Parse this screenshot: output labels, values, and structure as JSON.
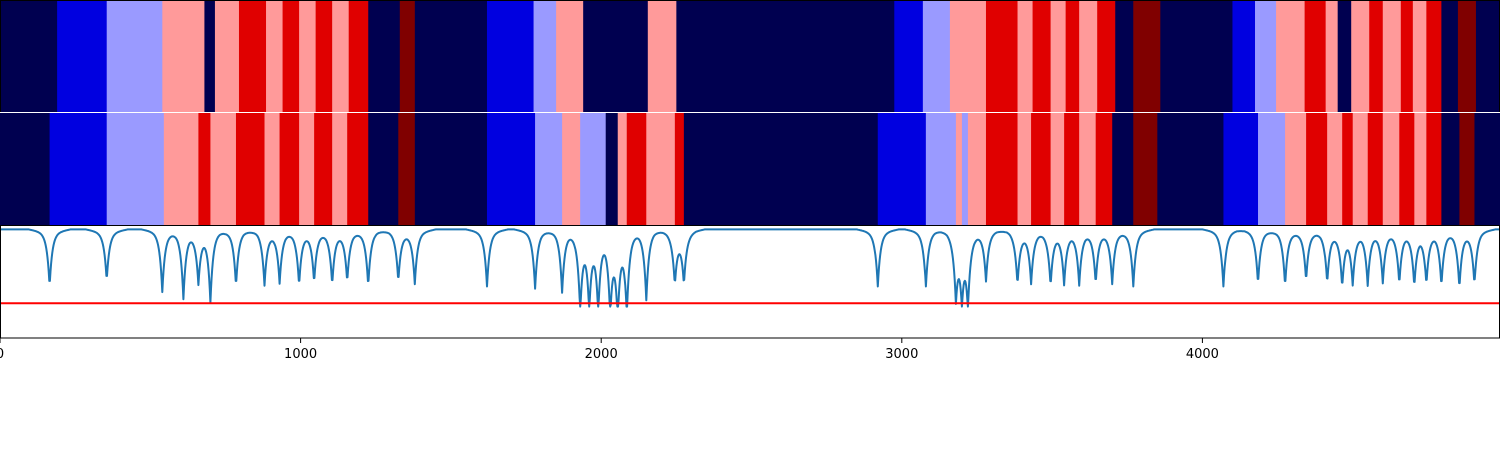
{
  "chart_data": {
    "type": "heatmap",
    "xlim": [
      0,
      4990
    ],
    "x_ticks": [
      {
        "value": 0,
        "label": "0"
      },
      {
        "value": 1000,
        "label": "1000"
      },
      {
        "value": 2000,
        "label": "2000"
      },
      {
        "value": 3000,
        "label": "3000"
      },
      {
        "value": 4000,
        "label": "4000"
      }
    ],
    "palette": {
      "N": "#000050",
      "B": "#0000e0",
      "L": "#9a9aff",
      "P": "#ff9a9a",
      "R": "#e00000",
      "D": "#800000"
    },
    "rows": [
      {
        "segments": [
          [
            0,
            190,
            "N"
          ],
          [
            190,
            355,
            "B"
          ],
          [
            355,
            540,
            "L"
          ],
          [
            540,
            680,
            "P"
          ],
          [
            680,
            715,
            "N"
          ],
          [
            715,
            795,
            "P"
          ],
          [
            795,
            885,
            "R"
          ],
          [
            885,
            940,
            "P"
          ],
          [
            940,
            995,
            "R"
          ],
          [
            995,
            1050,
            "P"
          ],
          [
            1050,
            1105,
            "R"
          ],
          [
            1105,
            1160,
            "P"
          ],
          [
            1160,
            1225,
            "R"
          ],
          [
            1225,
            1330,
            "N"
          ],
          [
            1330,
            1380,
            "D"
          ],
          [
            1380,
            1620,
            "N"
          ],
          [
            1620,
            1775,
            "B"
          ],
          [
            1775,
            1850,
            "L"
          ],
          [
            1850,
            1940,
            "P"
          ],
          [
            1940,
            2155,
            "N"
          ],
          [
            2155,
            2250,
            "P"
          ],
          [
            2250,
            2975,
            "N"
          ],
          [
            2975,
            3070,
            "B"
          ],
          [
            3070,
            3160,
            "L"
          ],
          [
            3160,
            3280,
            "P"
          ],
          [
            3280,
            3385,
            "R"
          ],
          [
            3385,
            3435,
            "P"
          ],
          [
            3435,
            3495,
            "R"
          ],
          [
            3495,
            3545,
            "P"
          ],
          [
            3545,
            3590,
            "R"
          ],
          [
            3590,
            3650,
            "P"
          ],
          [
            3650,
            3710,
            "R"
          ],
          [
            3710,
            3770,
            "N"
          ],
          [
            3770,
            3860,
            "D"
          ],
          [
            3860,
            4100,
            "N"
          ],
          [
            4100,
            4175,
            "B"
          ],
          [
            4175,
            4245,
            "L"
          ],
          [
            4245,
            4340,
            "P"
          ],
          [
            4340,
            4410,
            "R"
          ],
          [
            4410,
            4450,
            "P"
          ],
          [
            4450,
            4495,
            "N"
          ],
          [
            4495,
            4555,
            "P"
          ],
          [
            4555,
            4600,
            "R"
          ],
          [
            4600,
            4660,
            "P"
          ],
          [
            4660,
            4700,
            "R"
          ],
          [
            4700,
            4745,
            "P"
          ],
          [
            4745,
            4795,
            "R"
          ],
          [
            4795,
            4850,
            "N"
          ],
          [
            4850,
            4910,
            "D"
          ],
          [
            4910,
            4990,
            "N"
          ]
        ]
      },
      {
        "segments": [
          [
            0,
            165,
            "N"
          ],
          [
            165,
            355,
            "B"
          ],
          [
            355,
            545,
            "L"
          ],
          [
            545,
            660,
            "P"
          ],
          [
            660,
            700,
            "R"
          ],
          [
            700,
            785,
            "P"
          ],
          [
            785,
            880,
            "R"
          ],
          [
            880,
            930,
            "P"
          ],
          [
            930,
            995,
            "R"
          ],
          [
            995,
            1045,
            "P"
          ],
          [
            1045,
            1105,
            "R"
          ],
          [
            1105,
            1155,
            "P"
          ],
          [
            1155,
            1225,
            "R"
          ],
          [
            1225,
            1325,
            "N"
          ],
          [
            1325,
            1380,
            "D"
          ],
          [
            1380,
            1620,
            "N"
          ],
          [
            1620,
            1780,
            "B"
          ],
          [
            1780,
            1870,
            "L"
          ],
          [
            1870,
            1930,
            "P"
          ],
          [
            1930,
            2015,
            "L"
          ],
          [
            2015,
            2055,
            "N"
          ],
          [
            2055,
            2085,
            "P"
          ],
          [
            2085,
            2150,
            "R"
          ],
          [
            2150,
            2245,
            "P"
          ],
          [
            2245,
            2275,
            "R"
          ],
          [
            2275,
            2920,
            "N"
          ],
          [
            2920,
            3080,
            "B"
          ],
          [
            3080,
            3180,
            "L"
          ],
          [
            3180,
            3200,
            "P"
          ],
          [
            3200,
            3220,
            "L"
          ],
          [
            3220,
            3280,
            "P"
          ],
          [
            3280,
            3385,
            "R"
          ],
          [
            3385,
            3430,
            "P"
          ],
          [
            3430,
            3495,
            "R"
          ],
          [
            3495,
            3540,
            "P"
          ],
          [
            3540,
            3590,
            "R"
          ],
          [
            3590,
            3645,
            "P"
          ],
          [
            3645,
            3700,
            "R"
          ],
          [
            3700,
            3770,
            "N"
          ],
          [
            3770,
            3850,
            "D"
          ],
          [
            3850,
            4070,
            "N"
          ],
          [
            4070,
            4185,
            "B"
          ],
          [
            4185,
            4275,
            "L"
          ],
          [
            4275,
            4345,
            "P"
          ],
          [
            4345,
            4415,
            "R"
          ],
          [
            4415,
            4465,
            "P"
          ],
          [
            4465,
            4500,
            "R"
          ],
          [
            4500,
            4550,
            "P"
          ],
          [
            4550,
            4600,
            "R"
          ],
          [
            4600,
            4655,
            "P"
          ],
          [
            4655,
            4705,
            "R"
          ],
          [
            4705,
            4745,
            "P"
          ],
          [
            4745,
            4795,
            "R"
          ],
          [
            4795,
            4855,
            "N"
          ],
          [
            4855,
            4905,
            "D"
          ],
          [
            4905,
            4990,
            "N"
          ]
        ]
      }
    ],
    "line_series": {
      "color": "#1f77b4",
      "ylim": [
        0,
        1
      ],
      "baseline": 0.97,
      "dips": [
        [
          165,
          0.5
        ],
        [
          355,
          0.55
        ],
        [
          540,
          0.45
        ],
        [
          610,
          0.4
        ],
        [
          660,
          0.55
        ],
        [
          700,
          0.38
        ],
        [
          785,
          0.5
        ],
        [
          880,
          0.52
        ],
        [
          930,
          0.54
        ],
        [
          995,
          0.52
        ],
        [
          1045,
          0.55
        ],
        [
          1105,
          0.53
        ],
        [
          1155,
          0.55
        ],
        [
          1225,
          0.5
        ],
        [
          1325,
          0.55
        ],
        [
          1380,
          0.53
        ],
        [
          1620,
          0.5
        ],
        [
          1780,
          0.48
        ],
        [
          1870,
          0.45
        ],
        [
          1930,
          0.32
        ],
        [
          1960,
          0.36
        ],
        [
          1990,
          0.33
        ],
        [
          2030,
          0.32
        ],
        [
          2055,
          0.3
        ],
        [
          2085,
          0.3
        ],
        [
          2150,
          0.38
        ],
        [
          2245,
          0.55
        ],
        [
          2275,
          0.55
        ],
        [
          2920,
          0.5
        ],
        [
          3080,
          0.5
        ],
        [
          3180,
          0.45
        ],
        [
          3200,
          0.48
        ],
        [
          3220,
          0.4
        ],
        [
          3280,
          0.55
        ],
        [
          3385,
          0.53
        ],
        [
          3430,
          0.54
        ],
        [
          3495,
          0.52
        ],
        [
          3540,
          0.54
        ],
        [
          3590,
          0.53
        ],
        [
          3645,
          0.54
        ],
        [
          3700,
          0.53
        ],
        [
          3770,
          0.5
        ],
        [
          4070,
          0.5
        ],
        [
          4185,
          0.52
        ],
        [
          4275,
          0.5
        ],
        [
          4345,
          0.55
        ],
        [
          4415,
          0.54
        ],
        [
          4465,
          0.53
        ],
        [
          4500,
          0.55
        ],
        [
          4550,
          0.53
        ],
        [
          4600,
          0.55
        ],
        [
          4655,
          0.54
        ],
        [
          4705,
          0.53
        ],
        [
          4745,
          0.55
        ],
        [
          4795,
          0.52
        ],
        [
          4855,
          0.5
        ],
        [
          4905,
          0.53
        ]
      ]
    },
    "threshold": {
      "value": 0.31,
      "color": "#ff0000"
    },
    "grid": false,
    "legend": "none"
  }
}
